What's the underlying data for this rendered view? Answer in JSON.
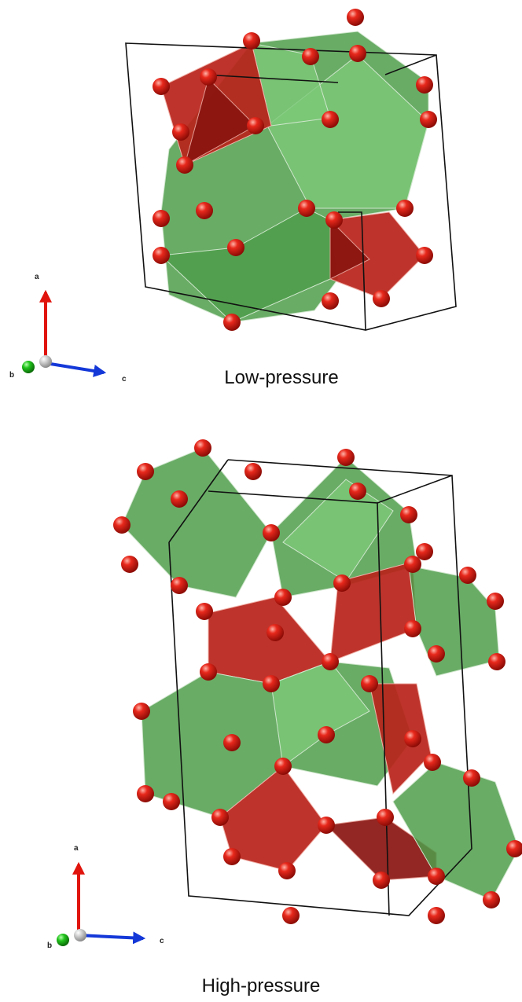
{
  "panels": [
    {
      "caption": "Low-pressure",
      "axes": {
        "a": "a",
        "b": "b",
        "c": "c"
      }
    },
    {
      "caption": "High-pressure",
      "axes": {
        "a": "a",
        "b": "b",
        "c": "c"
      }
    }
  ]
}
